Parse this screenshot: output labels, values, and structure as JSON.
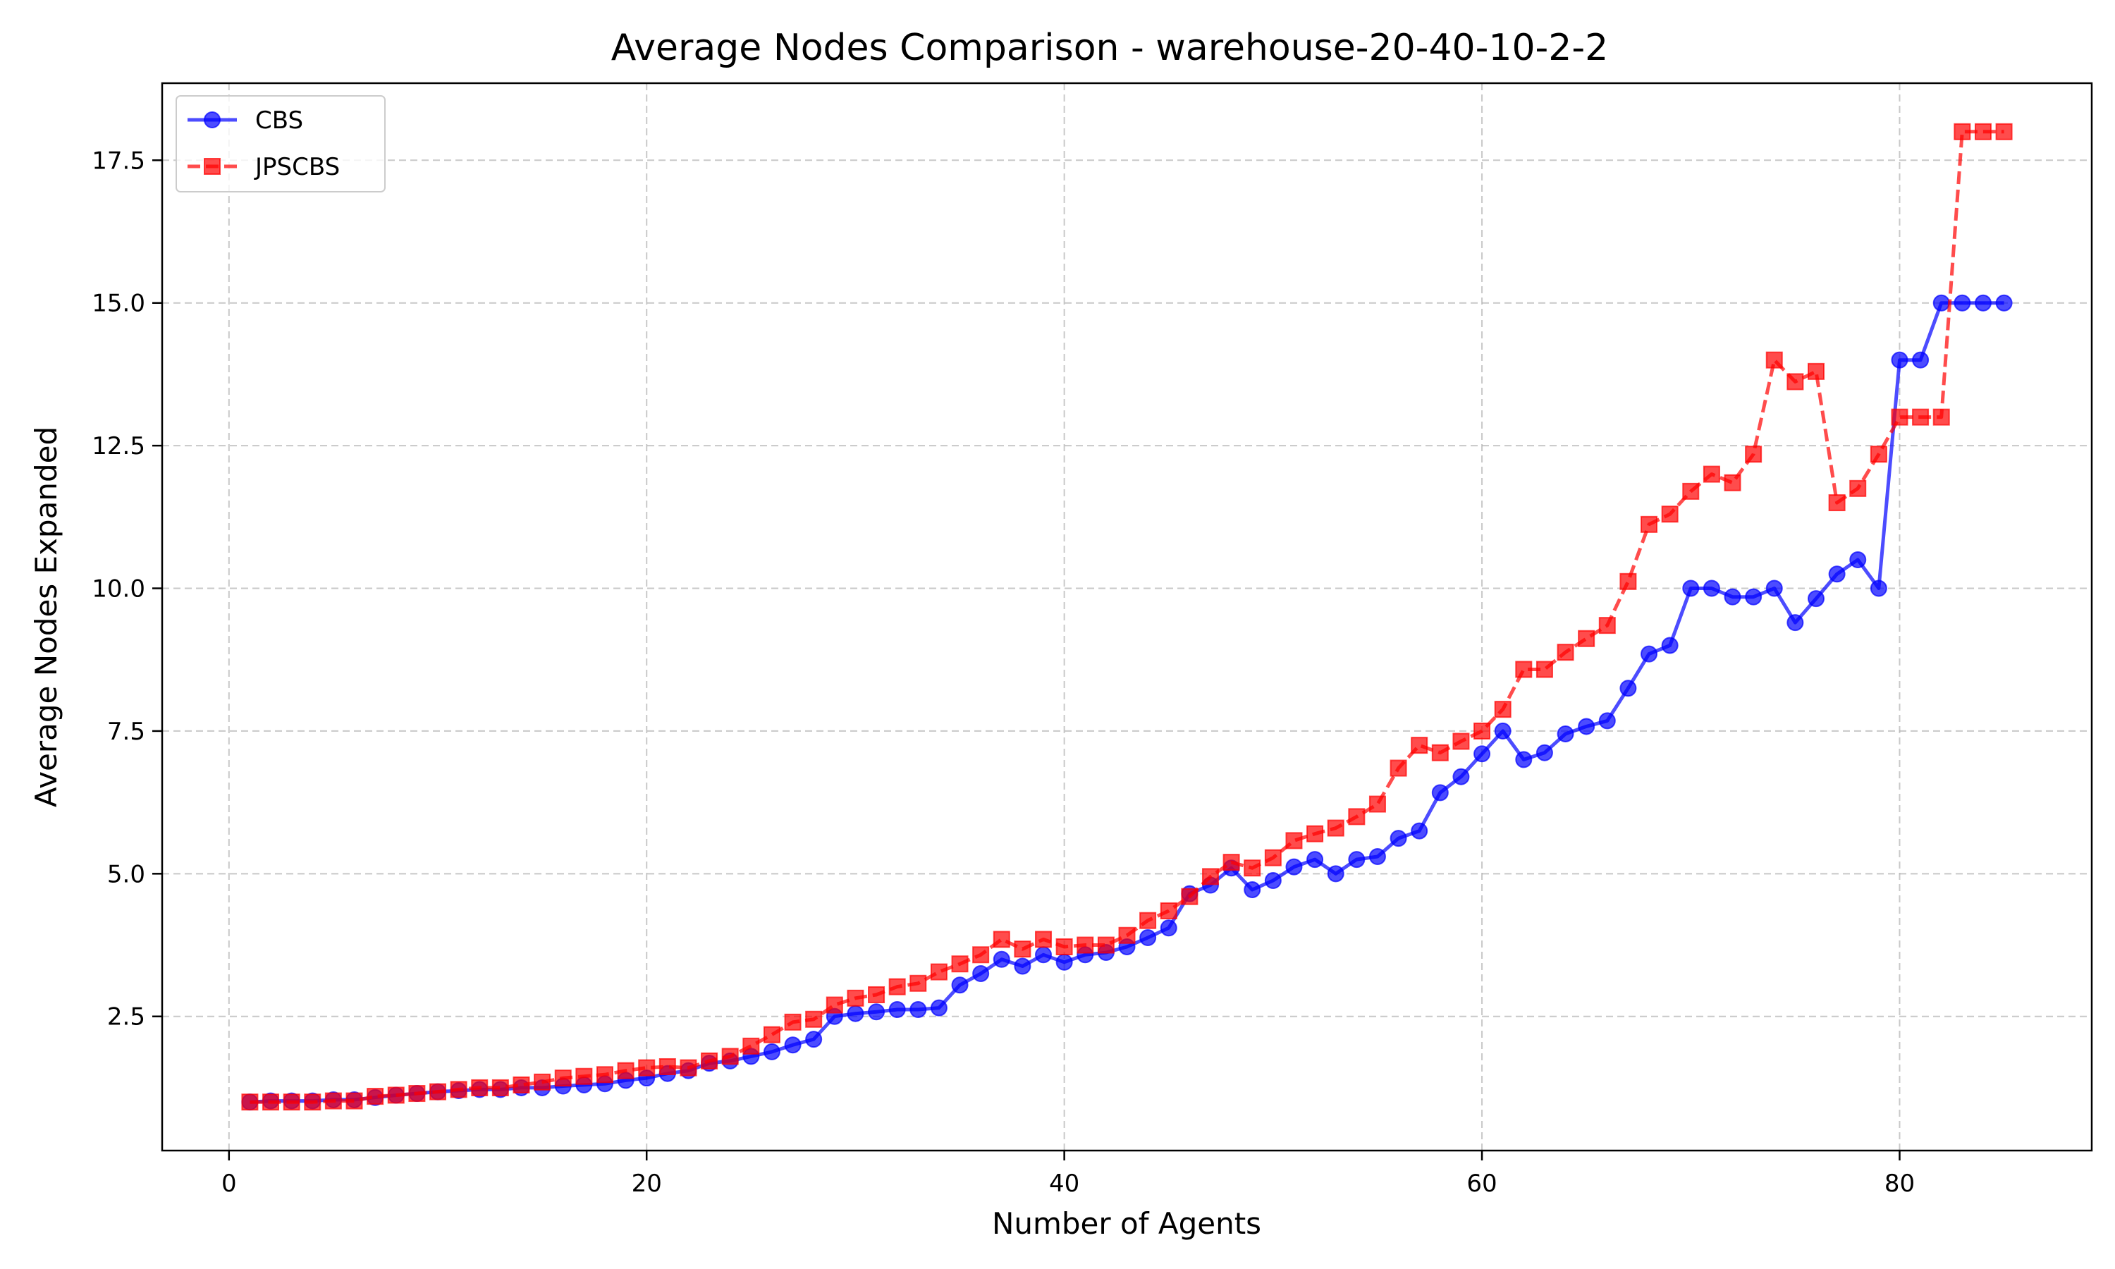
{
  "chart_data": {
    "type": "line",
    "title": "Average Nodes Comparison - warehouse-20-40-10-2-2",
    "xlabel": "Number of Agents",
    "ylabel": "Average Nodes Expanded",
    "xlim": [
      -3.2,
      89.2
    ],
    "ylim": [
      0.15,
      18.85
    ],
    "xticks": [
      0,
      20,
      40,
      60,
      80
    ],
    "yticks": [
      2.5,
      5.0,
      7.5,
      10.0,
      12.5,
      15.0,
      17.5
    ],
    "xtick_labels": [
      "0",
      "20",
      "40",
      "60",
      "80"
    ],
    "ytick_labels": [
      "2.5",
      "5.0",
      "7.5",
      "10.0",
      "12.5",
      "15.0",
      "17.5"
    ],
    "grid": true,
    "legend_position": "upper-left",
    "x": [
      1,
      2,
      3,
      4,
      5,
      6,
      7,
      8,
      9,
      10,
      11,
      12,
      13,
      14,
      15,
      16,
      17,
      18,
      19,
      20,
      21,
      22,
      23,
      24,
      25,
      26,
      27,
      28,
      29,
      30,
      31,
      32,
      33,
      34,
      35,
      36,
      37,
      38,
      39,
      40,
      41,
      42,
      43,
      44,
      45,
      46,
      47,
      48,
      49,
      50,
      51,
      52,
      53,
      54,
      55,
      56,
      57,
      58,
      59,
      60,
      61,
      62,
      63,
      64,
      65,
      66,
      67,
      68,
      69,
      70,
      71,
      72,
      73,
      74,
      75,
      76,
      77,
      78,
      79,
      80,
      81,
      82,
      83,
      84,
      85
    ],
    "series": [
      {
        "name": "CBS",
        "color": "#0000ff",
        "marker": "circle",
        "linestyle": "solid",
        "values": [
          1.0,
          1.02,
          1.02,
          1.02,
          1.04,
          1.04,
          1.08,
          1.12,
          1.15,
          1.18,
          1.2,
          1.22,
          1.22,
          1.25,
          1.25,
          1.28,
          1.3,
          1.32,
          1.38,
          1.42,
          1.5,
          1.55,
          1.68,
          1.72,
          1.8,
          1.88,
          2.0,
          2.1,
          2.5,
          2.55,
          2.58,
          2.62,
          2.62,
          2.65,
          3.05,
          3.25,
          3.5,
          3.38,
          3.58,
          3.45,
          3.58,
          3.62,
          3.72,
          3.88,
          4.05,
          4.65,
          4.8,
          5.1,
          4.72,
          4.88,
          5.12,
          5.25,
          5.0,
          5.25,
          5.3,
          5.62,
          5.75,
          6.42,
          6.7,
          7.1,
          7.5,
          7.0,
          7.12,
          7.45,
          7.58,
          7.68,
          8.25,
          8.85,
          9.0,
          10.0,
          10.0,
          9.85,
          9.85,
          10.0,
          9.4,
          9.82,
          10.25,
          10.5,
          10.0,
          14.0,
          14.0,
          15.0,
          15.0,
          15.0,
          15.0
        ]
      },
      {
        "name": "JPSCBS",
        "color": "#ff0000",
        "marker": "square",
        "linestyle": "dashed",
        "values": [
          1.0,
          1.0,
          1.0,
          1.0,
          1.02,
          1.02,
          1.1,
          1.12,
          1.15,
          1.18,
          1.22,
          1.25,
          1.25,
          1.3,
          1.35,
          1.42,
          1.45,
          1.48,
          1.55,
          1.6,
          1.62,
          1.6,
          1.72,
          1.8,
          1.98,
          2.18,
          2.4,
          2.45,
          2.7,
          2.82,
          2.88,
          3.02,
          3.08,
          3.28,
          3.42,
          3.58,
          3.85,
          3.68,
          3.85,
          3.72,
          3.75,
          3.75,
          3.92,
          4.18,
          4.35,
          4.6,
          4.95,
          5.2,
          5.1,
          5.28,
          5.58,
          5.7,
          5.8,
          6.0,
          6.22,
          6.85,
          7.25,
          7.12,
          7.32,
          7.5,
          7.88,
          8.58,
          8.58,
          8.88,
          9.12,
          9.35,
          10.12,
          11.12,
          11.3,
          11.7,
          12.0,
          11.85,
          12.35,
          14.0,
          13.62,
          13.8,
          11.5,
          11.75,
          12.35,
          13.0,
          13.0,
          13.0,
          18.0,
          18.0,
          18.0
        ]
      }
    ]
  }
}
